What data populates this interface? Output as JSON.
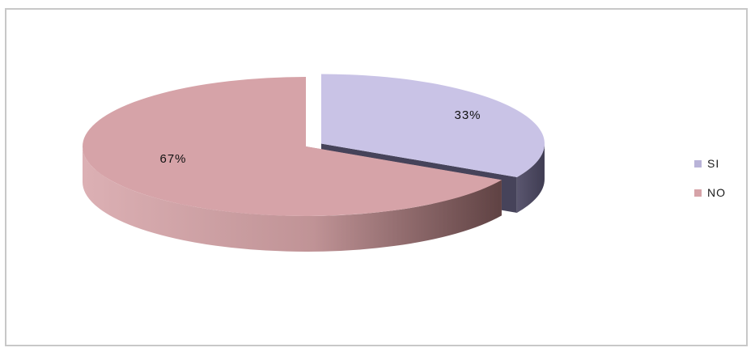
{
  "chart_data": {
    "type": "pie",
    "three_d": true,
    "exploded": true,
    "categories": [
      "SI",
      "NO"
    ],
    "values": [
      33,
      67
    ],
    "data_labels": [
      "33%",
      "67%"
    ],
    "legend_position": "right",
    "colors": {
      "SI_top": "#c9c3e6",
      "SI_side": "#4e4b64",
      "NO_top": "#d6a3a8",
      "NO_side_light": "#d8a8ac",
      "NO_side_dark": "#6c4a4a",
      "frame": "#c8c8c8"
    }
  },
  "legend": {
    "items": [
      {
        "label": "SI",
        "color": "#b9b3d8"
      },
      {
        "label": "NO",
        "color": "#d6a3a8"
      }
    ]
  }
}
